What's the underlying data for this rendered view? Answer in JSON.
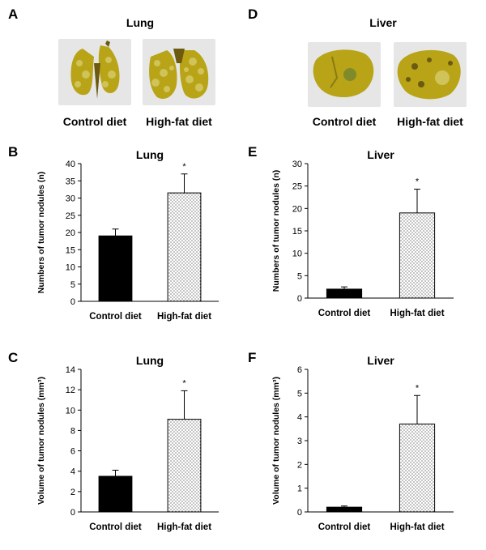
{
  "panels": {
    "A": {
      "letter": "A",
      "title": "Lung",
      "control_label": "Control diet",
      "highfat_label": "High-fat diet"
    },
    "D": {
      "letter": "D",
      "title": "Liver",
      "control_label": "Control diet",
      "highfat_label": "High-fat diet"
    }
  },
  "colors": {
    "photo_bg": "#e6e6e6",
    "tissue": "#b8a416",
    "tissue_dark": "#6b5a10",
    "nodule": "#cfc35a",
    "bar_fill": "#000000"
  },
  "chart_data": [
    {
      "id": "B",
      "letter": "B",
      "type": "bar",
      "title": "Lung",
      "categories": [
        "Control diet",
        "High-fat diet"
      ],
      "values": [
        19,
        31.5
      ],
      "errors": [
        2,
        5.5
      ],
      "significance": [
        "",
        "*"
      ],
      "ylabel": "Numbers of tumor nodules (n)",
      "ylim": [
        0,
        40
      ],
      "yticks": [
        0,
        5,
        10,
        15,
        20,
        25,
        30,
        35,
        40
      ]
    },
    {
      "id": "C",
      "letter": "C",
      "type": "bar",
      "title": "Lung",
      "categories": [
        "Control diet",
        "High-fat diet"
      ],
      "values": [
        3.5,
        9.1
      ],
      "errors": [
        0.6,
        2.8
      ],
      "significance": [
        "",
        "*"
      ],
      "ylabel": "Volume of tumor nodules (mm³)",
      "ylim": [
        0,
        14
      ],
      "yticks": [
        0,
        2,
        4,
        6,
        8,
        10,
        12,
        14
      ]
    },
    {
      "id": "E",
      "letter": "E",
      "type": "bar",
      "title": "Liver",
      "categories": [
        "Control diet",
        "High-fat diet"
      ],
      "values": [
        2,
        19
      ],
      "errors": [
        0.5,
        5.3
      ],
      "significance": [
        "",
        "*"
      ],
      "ylabel": "Numbers of tumor nodules (n)",
      "ylim": [
        0,
        30
      ],
      "yticks": [
        0,
        5,
        10,
        15,
        20,
        25,
        30
      ]
    },
    {
      "id": "F",
      "letter": "F",
      "type": "bar",
      "title": "Liver",
      "categories": [
        "Control diet",
        "High-fat diet"
      ],
      "values": [
        0.2,
        3.7
      ],
      "errors": [
        0.05,
        1.2
      ],
      "significance": [
        "",
        "*"
      ],
      "ylabel": "Volume of tumor nodules (mm³)",
      "ylim": [
        0,
        6
      ],
      "yticks": [
        0,
        1,
        2,
        3,
        4,
        5,
        6
      ]
    }
  ]
}
